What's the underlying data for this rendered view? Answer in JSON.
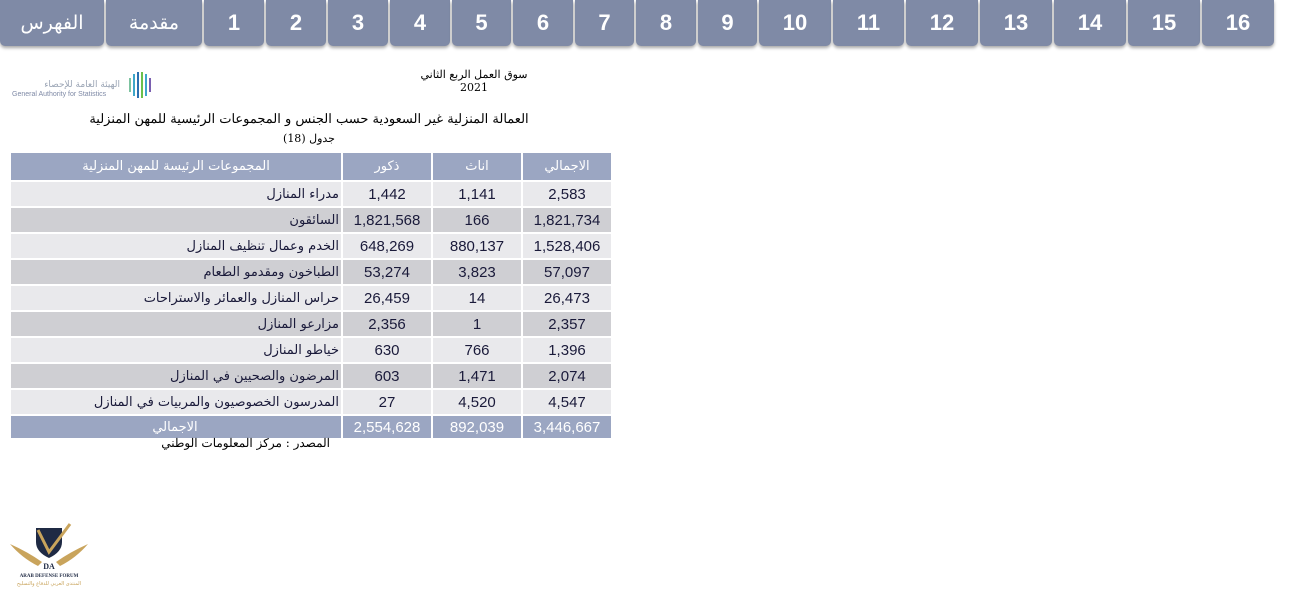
{
  "nav": {
    "tabs": [
      "الفهرس",
      "مقدمة",
      "1",
      "2",
      "3",
      "4",
      "5",
      "6",
      "7",
      "8",
      "9",
      "10",
      "11",
      "12",
      "13",
      "14",
      "15",
      "16"
    ]
  },
  "header": {
    "subtitle": "سوق العمل الربع الثاني 2021",
    "logo_ar": "الهيئة العامة للإحصاء",
    "logo_en": "General Authority for Statistics"
  },
  "table": {
    "title": "العمالة المنزلية غير السعودية حسب الجنس و المجموعات الرئيسية للمهن المنزلية",
    "number": "جدول (18)",
    "headers": {
      "group": "المجموعات الرئيسة للمهن المنزلية",
      "male": "ذكور",
      "female": "اناث",
      "total": "الاجمالي"
    },
    "rows": [
      {
        "group": "مدراء المنازل",
        "male": "1,442",
        "female": "1,141",
        "total": "2,583"
      },
      {
        "group": "السائقون",
        "male": "1,821,568",
        "female": "166",
        "total": "1,821,734"
      },
      {
        "group": "الخدم وعمال تنظيف المنازل",
        "male": "648,269",
        "female": "880,137",
        "total": "1,528,406"
      },
      {
        "group": "الطباخون ومقدمو الطعام",
        "male": "53,274",
        "female": "3,823",
        "total": "57,097"
      },
      {
        "group": "حراس المنازل والعمائر والاستراحات",
        "male": "26,459",
        "female": "14",
        "total": "26,473"
      },
      {
        "group": "مزارعو المنازل",
        "male": "2,356",
        "female": "1",
        "total": "2,357"
      },
      {
        "group": "خياطو المنازل",
        "male": "630",
        "female": "766",
        "total": "1,396"
      },
      {
        "group": "المرضون والصحيين في المنازل",
        "male": "603",
        "female": "1,471",
        "total": "2,074"
      },
      {
        "group": "المدرسون الخصوصيون والمربيات في المنازل",
        "male": "27",
        "female": "4,520",
        "total": "4,547"
      }
    ],
    "total_row": {
      "group": "الاجمالي",
      "male": "2,554,628",
      "female": "892,039",
      "total": "3,446,667"
    },
    "source": "المصدر : مركز المعلومات الوطني"
  },
  "footer_logo": {
    "text_en": "ARAB DEFENSE FORUM",
    "text_ar": "المنتدى العربي للدفاع والتسليح",
    "mark": "DA"
  },
  "colors": {
    "tab": "#7f8aa6",
    "header": "#9ba6c2",
    "row_light": "#e9e9ec",
    "row_dark": "#cfcfd3"
  }
}
